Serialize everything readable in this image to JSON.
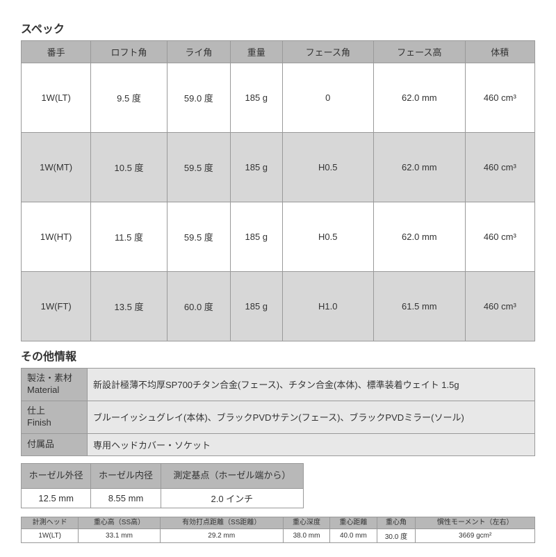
{
  "spec": {
    "title": "スペック",
    "columns": [
      "番手",
      "ロフト角",
      "ライ角",
      "重量",
      "フェース角",
      "フェース高",
      "体積"
    ],
    "rows": [
      [
        "1W(LT)",
        "9.5 度",
        "59.0 度",
        "185 g",
        "0",
        "62.0 mm",
        "460 cm³"
      ],
      [
        "1W(MT)",
        "10.5 度",
        "59.5 度",
        "185 g",
        "H0.5",
        "62.0 mm",
        "460 cm³"
      ],
      [
        "1W(HT)",
        "11.5 度",
        "59.5 度",
        "185 g",
        "H0.5",
        "62.0 mm",
        "460 cm³"
      ],
      [
        "1W(FT)",
        "13.5 度",
        "60.0 度",
        "185 g",
        "H1.0",
        "61.5 mm",
        "460 cm³"
      ]
    ]
  },
  "other": {
    "title": "その他情報",
    "rows": [
      {
        "label": "製法・素材\nMaterial",
        "value": "新設計極薄不均厚SP700チタン合金(フェース)、チタン合金(本体)、標準装着ウェイト 1.5g"
      },
      {
        "label": "仕上\nFinish",
        "value": "ブルーイッシュグレイ(本体)、ブラックPVDサテン(フェース)、ブラックPVDミラー(ソール)"
      },
      {
        "label": "付属品",
        "value": "専用ヘッドカバー・ソケット"
      }
    ]
  },
  "hosel": {
    "columns": [
      "ホーゼル外径",
      "ホーゼル内径",
      "測定基点（ホーゼル端から）"
    ],
    "rows": [
      [
        "12.5 mm",
        "8.55 mm",
        "2.0 インチ"
      ]
    ]
  },
  "moi": {
    "columns": [
      "計測ヘッド",
      "重心高（SS高）",
      "有効打点距離（SS距離）",
      "重心深度",
      "重心距離",
      "重心角",
      "慣性モーメント（左右）"
    ],
    "rows": [
      [
        "1W(LT)",
        "33.1 mm",
        "29.2 mm",
        "38.0 mm",
        "40.0 mm",
        "30.0 度",
        "3669 gcm²"
      ]
    ]
  }
}
